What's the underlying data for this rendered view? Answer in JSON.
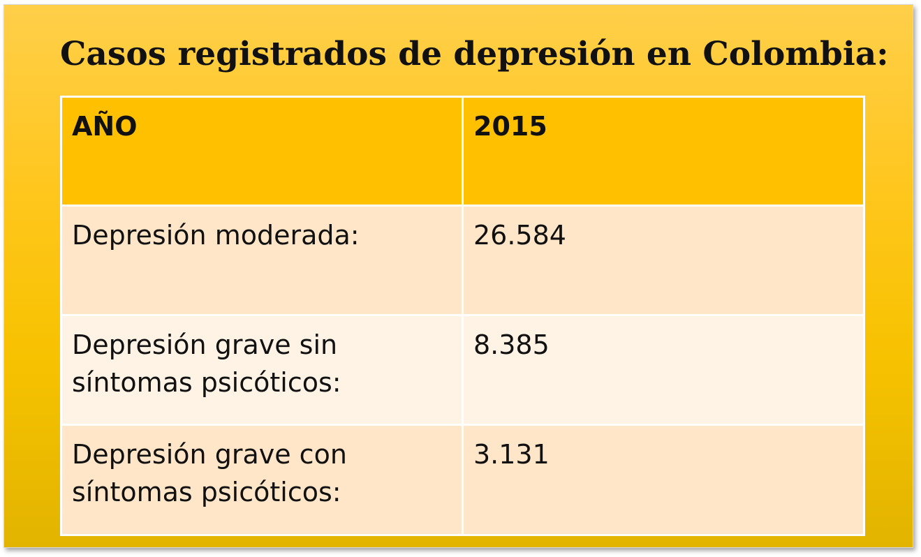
{
  "title": "Casos registrados de depresión en Colombia:",
  "table": {
    "headers": [
      "AÑO",
      "2015"
    ],
    "rows": [
      {
        "label": "Depresión moderada:",
        "value": "26.584"
      },
      {
        "label": "Depresión grave sin síntomas psicóticos:",
        "value": "8.385"
      },
      {
        "label": "Depresión grave con síntomas psicóticos:",
        "value": "3.131"
      }
    ]
  },
  "colors": {
    "background_top": "#ffcf4a",
    "background_bottom": "#e2b400",
    "header_fill": "#ffc000",
    "row_fill_odd": "#ffe6c8",
    "row_fill_even": "#fff3e5",
    "text": "#111111"
  }
}
